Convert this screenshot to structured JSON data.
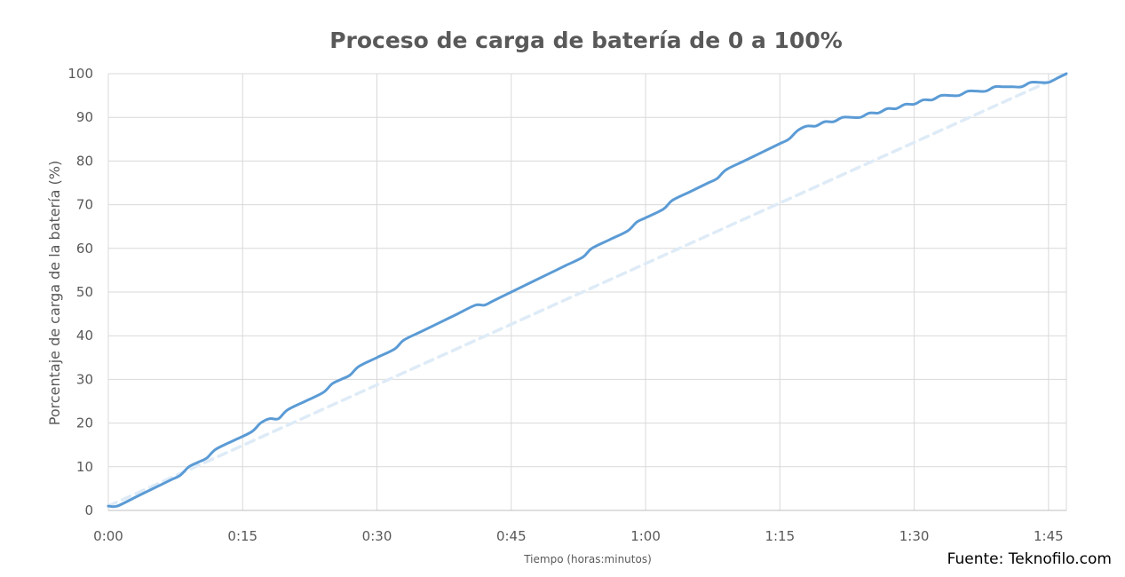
{
  "chart_data": {
    "type": "line",
    "title": "Proceso de carga de batería de 0 a 100%",
    "xlabel": "Tiempo (horas:minutos)",
    "ylabel": "Porcentaje de carga de la batería (%)",
    "source": "Fuente: Teknofilo.com",
    "x_ticks": [
      "0:00",
      "0:15",
      "0:30",
      "0:45",
      "1:00",
      "1:15",
      "1:30",
      "1:45"
    ],
    "y_ticks": [
      0,
      10,
      20,
      30,
      40,
      50,
      60,
      70,
      80,
      90,
      100
    ],
    "xlim_minutes": [
      0,
      107
    ],
    "ylim": [
      0,
      100
    ],
    "grid": true,
    "series": [
      {
        "style": "solid",
        "color": "#5b9bd5",
        "x_minutes": [
          0,
          1,
          3,
          5,
          7,
          8,
          9,
          10,
          11,
          12,
          14,
          16,
          17,
          18,
          19,
          20,
          22,
          24,
          25,
          26,
          27,
          28,
          30,
          32,
          33,
          35,
          37,
          39,
          41,
          42,
          43,
          45,
          47,
          49,
          51,
          53,
          54,
          56,
          58,
          59,
          60,
          62,
          63,
          65,
          67,
          68,
          69,
          71,
          73,
          75,
          76,
          77,
          78,
          79,
          80,
          81,
          82,
          83,
          84,
          85,
          86,
          87,
          88,
          89,
          90,
          91,
          92,
          93,
          94,
          95,
          96,
          97,
          98,
          99,
          100,
          101,
          102,
          103,
          104,
          105,
          106,
          107
        ],
        "y": [
          1,
          1,
          3,
          5,
          7,
          8,
          10,
          11,
          12,
          14,
          16,
          18,
          20,
          21,
          21,
          23,
          25,
          27,
          29,
          30,
          31,
          33,
          35,
          37,
          39,
          41,
          43,
          45,
          47,
          47,
          48,
          50,
          52,
          54,
          56,
          58,
          60,
          62,
          64,
          66,
          67,
          69,
          71,
          73,
          75,
          76,
          78,
          80,
          82,
          84,
          85,
          87,
          88,
          88,
          89,
          89,
          90,
          90,
          90,
          91,
          91,
          92,
          92,
          93,
          93,
          94,
          94,
          95,
          95,
          95,
          96,
          96,
          96,
          97,
          97,
          97,
          97,
          98,
          98,
          98,
          99,
          100
        ]
      },
      {
        "style": "dashed",
        "color": "#deebf7",
        "x_minutes": [
          0,
          107
        ],
        "y": [
          1,
          100
        ]
      }
    ]
  }
}
